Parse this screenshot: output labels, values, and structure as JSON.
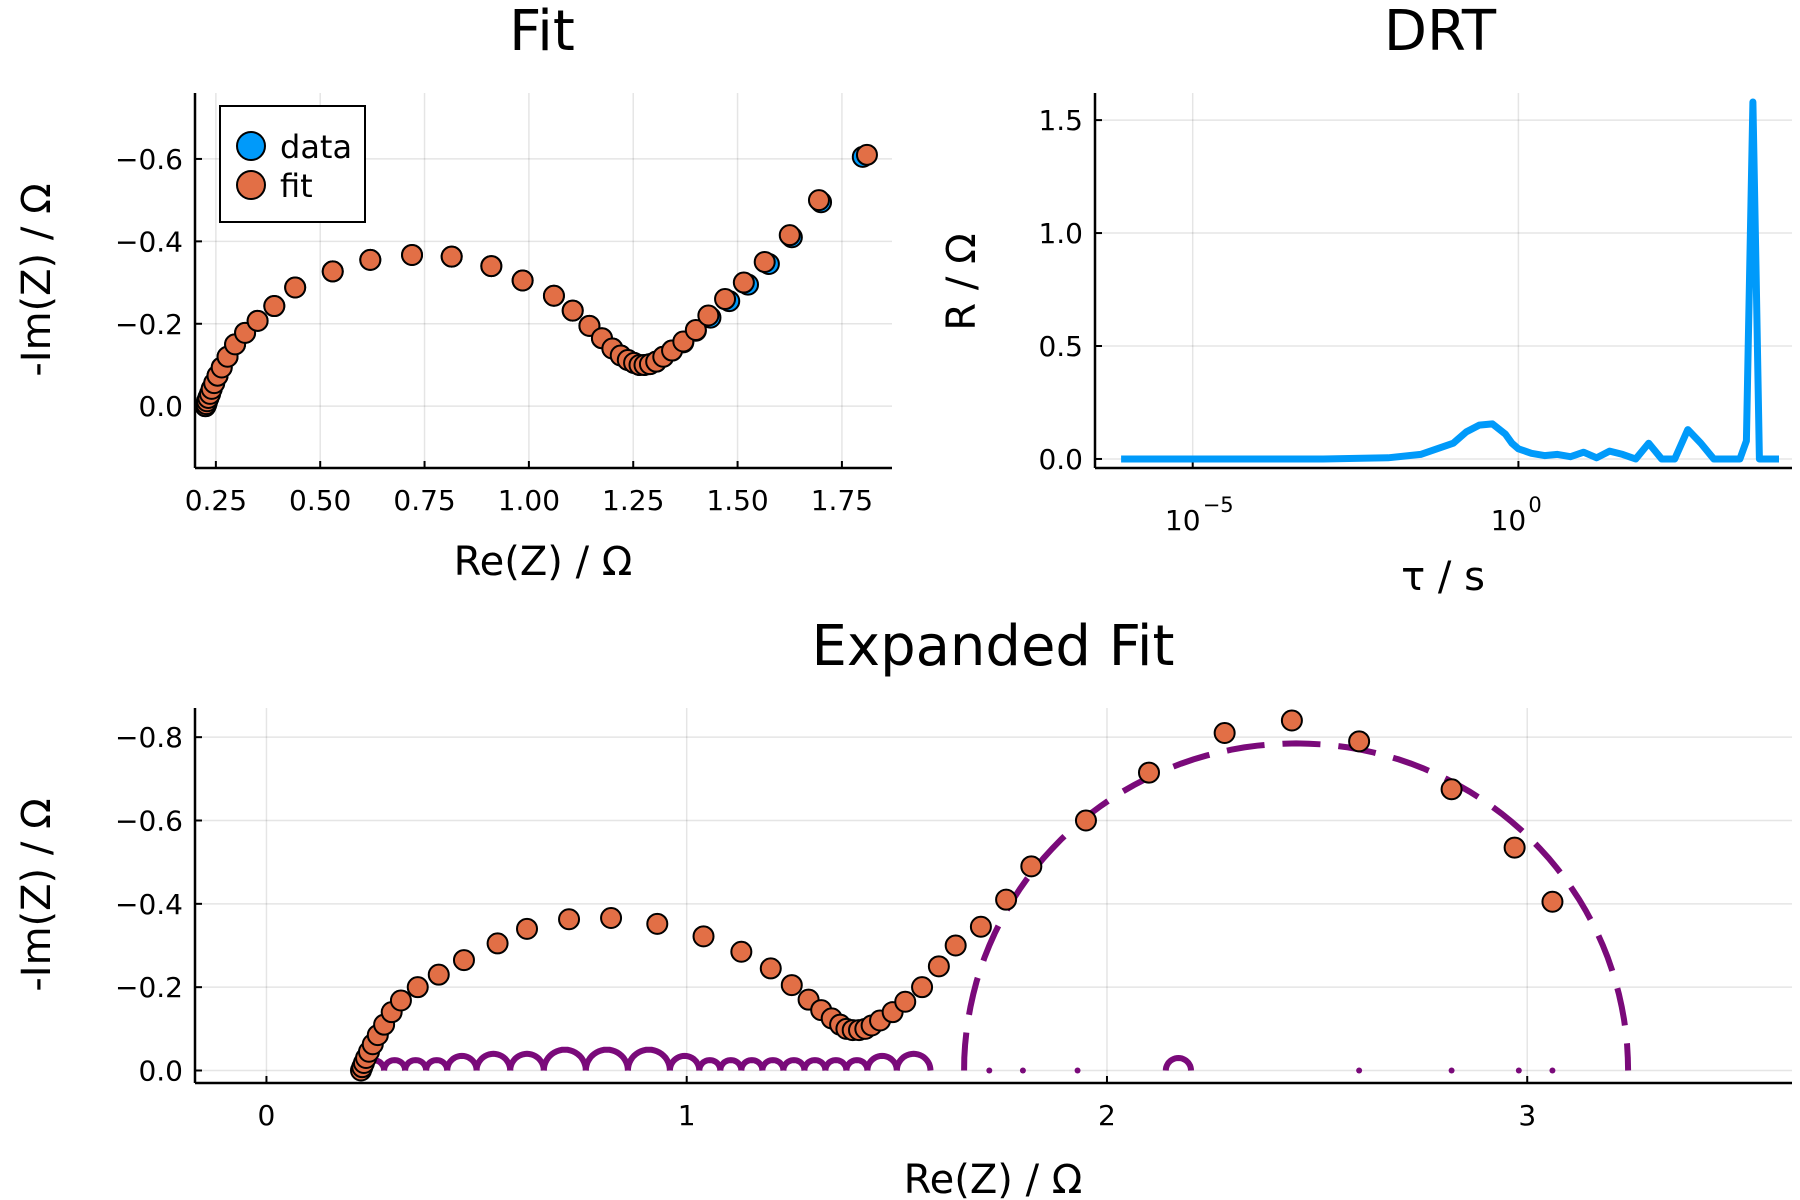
{
  "chart_data": [
    {
      "id": "fit",
      "type": "scatter",
      "title": "Fit",
      "xlabel": "Re(Z) / Ω",
      "ylabel": "-Im(Z) / Ω",
      "xlim": [
        0.2,
        1.87
      ],
      "ylim": [
        -0.15,
        0.76
      ],
      "y_inverted_tick_labels": true,
      "xticks": [
        0.25,
        0.5,
        0.75,
        1.0,
        1.25,
        1.5,
        1.75
      ],
      "xtick_labels": [
        "0.25",
        "0.50",
        "0.75",
        "1.00",
        "1.25",
        "1.50",
        "1.75"
      ],
      "yticks": [
        0.0,
        0.2,
        0.4,
        0.6
      ],
      "ytick_labels": [
        "0.0",
        "−0.2",
        "−0.4",
        "−0.6"
      ],
      "grid": true,
      "legend": "top-left",
      "series": [
        {
          "name": "data",
          "color": "#009AFA",
          "points": [
            [
              0.225,
              0.0
            ],
            [
              0.227,
              0.005
            ],
            [
              0.229,
              0.012
            ],
            [
              0.232,
              0.02
            ],
            [
              0.236,
              0.03
            ],
            [
              0.24,
              0.042
            ],
            [
              0.246,
              0.056
            ],
            [
              0.254,
              0.074
            ],
            [
              0.264,
              0.094
            ],
            [
              0.278,
              0.12
            ],
            [
              0.296,
              0.15
            ],
            [
              0.32,
              0.178
            ],
            [
              0.35,
              0.207
            ],
            [
              0.39,
              0.243
            ],
            [
              0.44,
              0.288
            ],
            [
              0.53,
              0.327
            ],
            [
              0.62,
              0.355
            ],
            [
              0.72,
              0.367
            ],
            [
              0.815,
              0.363
            ],
            [
              0.91,
              0.34
            ],
            [
              0.985,
              0.305
            ],
            [
              1.06,
              0.268
            ],
            [
              1.105,
              0.232
            ],
            [
              1.145,
              0.195
            ],
            [
              1.175,
              0.165
            ],
            [
              1.2,
              0.14
            ],
            [
              1.22,
              0.123
            ],
            [
              1.237,
              0.112
            ],
            [
              1.252,
              0.105
            ],
            [
              1.265,
              0.1
            ],
            [
              1.277,
              0.1
            ],
            [
              1.29,
              0.102
            ],
            [
              1.305,
              0.108
            ],
            [
              1.322,
              0.12
            ],
            [
              1.343,
              0.135
            ],
            [
              1.37,
              0.155
            ],
            [
              1.4,
              0.183
            ],
            [
              1.435,
              0.215
            ],
            [
              1.48,
              0.255
            ],
            [
              1.525,
              0.295
            ],
            [
              1.575,
              0.345
            ],
            [
              1.63,
              0.41
            ],
            [
              1.7,
              0.495
            ],
            [
              1.8,
              0.605
            ]
          ]
        },
        {
          "name": "fit",
          "color": "#E26F46",
          "points": [
            [
              0.225,
              0.0
            ],
            [
              0.227,
              0.005
            ],
            [
              0.229,
              0.012
            ],
            [
              0.232,
              0.02
            ],
            [
              0.236,
              0.03
            ],
            [
              0.24,
              0.042
            ],
            [
              0.246,
              0.056
            ],
            [
              0.254,
              0.074
            ],
            [
              0.264,
              0.094
            ],
            [
              0.278,
              0.12
            ],
            [
              0.296,
              0.15
            ],
            [
              0.32,
              0.178
            ],
            [
              0.35,
              0.207
            ],
            [
              0.39,
              0.243
            ],
            [
              0.44,
              0.288
            ],
            [
              0.53,
              0.327
            ],
            [
              0.62,
              0.355
            ],
            [
              0.72,
              0.367
            ],
            [
              0.815,
              0.363
            ],
            [
              0.91,
              0.34
            ],
            [
              0.985,
              0.305
            ],
            [
              1.06,
              0.268
            ],
            [
              1.105,
              0.232
            ],
            [
              1.145,
              0.195
            ],
            [
              1.175,
              0.165
            ],
            [
              1.2,
              0.14
            ],
            [
              1.22,
              0.123
            ],
            [
              1.237,
              0.112
            ],
            [
              1.252,
              0.105
            ],
            [
              1.265,
              0.1
            ],
            [
              1.277,
              0.1
            ],
            [
              1.29,
              0.102
            ],
            [
              1.305,
              0.108
            ],
            [
              1.322,
              0.12
            ],
            [
              1.343,
              0.135
            ],
            [
              1.37,
              0.157
            ],
            [
              1.4,
              0.185
            ],
            [
              1.43,
              0.22
            ],
            [
              1.47,
              0.26
            ],
            [
              1.515,
              0.3
            ],
            [
              1.565,
              0.35
            ],
            [
              1.625,
              0.415
            ],
            [
              1.695,
              0.5
            ],
            [
              1.81,
              0.61
            ]
          ]
        }
      ]
    },
    {
      "id": "drt",
      "type": "line",
      "title": "DRT",
      "xlabel": "τ / s",
      "ylabel": "R / Ω",
      "xscale": "log10",
      "xlim_log10": [
        -6.5,
        4.2
      ],
      "ylim": [
        -0.04,
        1.62
      ],
      "xticks_log10": [
        -5,
        0
      ],
      "xtick_labels": [
        {
          "base": "10",
          "exp": "−5"
        },
        {
          "base": "10",
          "exp": "0"
        }
      ],
      "yticks": [
        0.0,
        0.5,
        1.0,
        1.5
      ],
      "ytick_labels": [
        "0.0",
        "0.5",
        "1.0",
        "1.5"
      ],
      "grid": true,
      "series": [
        {
          "color": "#009AFA",
          "log10_tau": [
            -6.1,
            -5.0,
            -4.0,
            -3.0,
            -2.0,
            -1.5,
            -1.0,
            -0.8,
            -0.6,
            -0.4,
            -0.2,
            -0.1,
            0.0,
            0.2,
            0.4,
            0.6,
            0.8,
            1.0,
            1.2,
            1.4,
            1.6,
            1.8,
            2.0,
            2.2,
            2.4,
            2.6,
            2.8,
            3.0,
            3.2,
            3.4,
            3.5,
            3.6,
            3.65,
            3.7,
            3.8,
            4.0
          ],
          "R": [
            0.0,
            0.0,
            0.0,
            0.0,
            0.005,
            0.02,
            0.07,
            0.12,
            0.15,
            0.155,
            0.11,
            0.07,
            0.045,
            0.025,
            0.015,
            0.02,
            0.01,
            0.03,
            0.005,
            0.035,
            0.02,
            0.0,
            0.07,
            0.0,
            0.0,
            0.13,
            0.07,
            0.0,
            0.0,
            0.0,
            0.08,
            1.58,
            0.8,
            0.0,
            0.0,
            0.0
          ]
        }
      ]
    },
    {
      "id": "expanded",
      "type": "scatter",
      "title": "Expanded Fit",
      "xlabel": "Re(Z) / Ω",
      "ylabel": "-Im(Z) / Ω",
      "xlim": [
        -0.17,
        3.63
      ],
      "ylim": [
        -0.03,
        0.87
      ],
      "y_inverted_tick_labels": true,
      "xticks": [
        0,
        1,
        2,
        3
      ],
      "xtick_labels": [
        "0",
        "1",
        "2",
        "3"
      ],
      "yticks": [
        0.0,
        0.2,
        0.4,
        0.6,
        0.8
      ],
      "ytick_labels": [
        "0.0",
        "−0.2",
        "−0.4",
        "−0.6",
        "−0.8"
      ],
      "grid": true,
      "series": [
        {
          "name": "fit",
          "color": "#E26F46",
          "points": [
            [
              0.225,
              0.0
            ],
            [
              0.228,
              0.008
            ],
            [
              0.232,
              0.018
            ],
            [
              0.237,
              0.03
            ],
            [
              0.244,
              0.045
            ],
            [
              0.253,
              0.063
            ],
            [
              0.265,
              0.085
            ],
            [
              0.28,
              0.11
            ],
            [
              0.298,
              0.14
            ],
            [
              0.32,
              0.168
            ],
            [
              0.36,
              0.2
            ],
            [
              0.41,
              0.23
            ],
            [
              0.47,
              0.265
            ],
            [
              0.55,
              0.305
            ],
            [
              0.62,
              0.34
            ],
            [
              0.72,
              0.363
            ],
            [
              0.82,
              0.366
            ],
            [
              0.93,
              0.352
            ],
            [
              1.04,
              0.322
            ],
            [
              1.13,
              0.285
            ],
            [
              1.2,
              0.245
            ],
            [
              1.25,
              0.205
            ],
            [
              1.29,
              0.17
            ],
            [
              1.32,
              0.145
            ],
            [
              1.345,
              0.125
            ],
            [
              1.365,
              0.11
            ],
            [
              1.38,
              0.1
            ],
            [
              1.395,
              0.097
            ],
            [
              1.41,
              0.097
            ],
            [
              1.425,
              0.1
            ],
            [
              1.44,
              0.108
            ],
            [
              1.46,
              0.12
            ],
            [
              1.49,
              0.14
            ],
            [
              1.52,
              0.165
            ],
            [
              1.56,
              0.2
            ],
            [
              1.6,
              0.25
            ],
            [
              1.64,
              0.3
            ],
            [
              1.7,
              0.345
            ],
            [
              1.76,
              0.41
            ],
            [
              1.82,
              0.49
            ],
            [
              1.95,
              0.6
            ],
            [
              2.1,
              0.715
            ],
            [
              2.28,
              0.81
            ],
            [
              2.44,
              0.84
            ],
            [
              2.6,
              0.79
            ],
            [
              2.82,
              0.675
            ],
            [
              2.97,
              0.535
            ],
            [
              3.06,
              0.405
            ]
          ]
        },
        {
          "name": "arc-lc",
          "color": "#7A0A7A",
          "style": "dash",
          "x0": 1.66,
          "x1": 3.24
        },
        {
          "name": "arc-hf",
          "color": "#7A0A7A",
          "style": "solid-small",
          "arcs": [
            [
              0.23,
              0.28
            ],
            [
              0.28,
              0.33
            ],
            [
              0.33,
              0.38
            ],
            [
              0.38,
              0.43
            ],
            [
              0.43,
              0.5
            ],
            [
              0.5,
              0.58
            ],
            [
              0.58,
              0.66
            ],
            [
              0.66,
              0.76
            ],
            [
              0.76,
              0.86
            ],
            [
              0.86,
              0.96
            ],
            [
              0.96,
              1.03
            ],
            [
              1.03,
              1.08
            ],
            [
              1.08,
              1.13
            ],
            [
              1.13,
              1.18
            ],
            [
              1.18,
              1.23
            ],
            [
              1.23,
              1.28
            ],
            [
              1.28,
              1.33
            ],
            [
              1.33,
              1.38
            ],
            [
              1.38,
              1.43
            ],
            [
              1.43,
              1.5
            ],
            [
              1.5,
              1.58
            ],
            [
              2.14,
              2.2
            ]
          ]
        },
        {
          "name": "dots",
          "color": "#7A0A7A",
          "style": "dots",
          "x": [
            1.72,
            1.8,
            1.93,
            2.6,
            2.82,
            2.98,
            3.06
          ]
        }
      ]
    }
  ]
}
